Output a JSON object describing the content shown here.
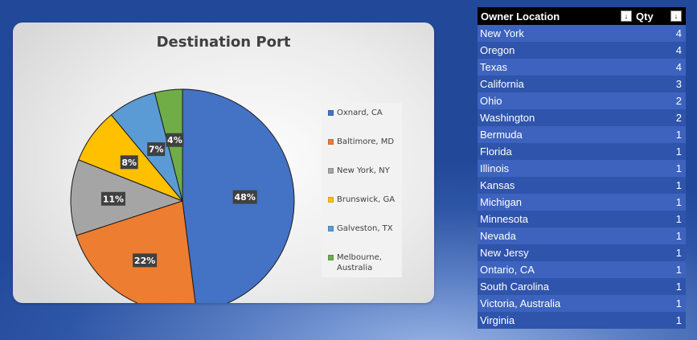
{
  "chart_data": {
    "type": "pie",
    "title": "Destination Port",
    "slices": [
      {
        "label": "Oxnard, CA",
        "value": 48,
        "data_label": "48%",
        "color": "#4472c4"
      },
      {
        "label": "Baltimore, MD",
        "value": 22,
        "data_label": "22%",
        "color": "#ed7d31"
      },
      {
        "label": "New York, NY",
        "value": 11,
        "data_label": "11%",
        "color": "#a5a5a5"
      },
      {
        "label": "Brunswick, GA",
        "value": 8,
        "data_label": "8%",
        "color": "#ffc000"
      },
      {
        "label": "Galveston, TX",
        "value": 7,
        "data_label": "7%",
        "color": "#5b9bd5"
      },
      {
        "label": "Melbourne, Australia",
        "value": 4,
        "data_label": "4%",
        "color": "#70ad47"
      }
    ],
    "legend_position": "right"
  },
  "table": {
    "headers": {
      "location": "Owner Location",
      "qty": "Qty"
    },
    "filter_icons": {
      "location": "↓",
      "qty": "↓"
    },
    "rows": [
      {
        "location": "New York",
        "qty": "4"
      },
      {
        "location": "Oregon",
        "qty": "4"
      },
      {
        "location": "Texas",
        "qty": "4"
      },
      {
        "location": "California",
        "qty": "3"
      },
      {
        "location": "Ohio",
        "qty": "2"
      },
      {
        "location": "Washington",
        "qty": "2"
      },
      {
        "location": "Bermuda",
        "qty": "1"
      },
      {
        "location": "Florida",
        "qty": "1"
      },
      {
        "location": "Illinois",
        "qty": "1"
      },
      {
        "location": "Kansas",
        "qty": "1"
      },
      {
        "location": "Michigan",
        "qty": "1"
      },
      {
        "location": "Minnesota",
        "qty": "1"
      },
      {
        "location": "Nevada",
        "qty": "1"
      },
      {
        "location": "New Jersy",
        "qty": "1"
      },
      {
        "location": "Ontario, CA",
        "qty": "1"
      },
      {
        "location": "South Carolina",
        "qty": "1"
      },
      {
        "location": "Victoria, Australia",
        "qty": "1"
      },
      {
        "location": "Virginia",
        "qty": "1"
      }
    ]
  }
}
